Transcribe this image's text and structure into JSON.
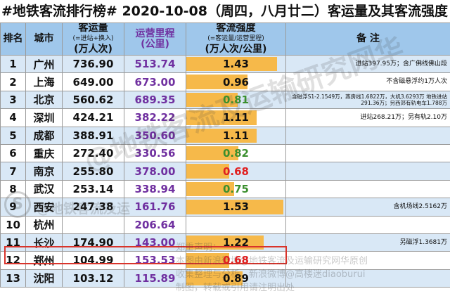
{
  "title": "#地铁客流排行榜# 2020-10-08（周四，八月廿二）客运量及其客流强度",
  "headers": {
    "rank": "排名",
    "city": "城市",
    "volume": "客运量",
    "volume_sub": "(=进站+换入)",
    "volume_unit": "(万人次)",
    "length": "运营里程",
    "length_unit": "(公里)",
    "intensity": "客流强度",
    "intensity_sub": "(=客运量/运营里程)",
    "intensity_unit": "(万人次/公里)",
    "notes": "备   注"
  },
  "rows": [
    {
      "rank": "1",
      "city": "广州",
      "volume": "736.90",
      "length": "513.74",
      "intensity": "1.43",
      "note": "进站397.95万；含广佛线佛山段"
    },
    {
      "rank": "2",
      "city": "上海",
      "volume": "649.00",
      "length": "673.00",
      "intensity": "0.96",
      "note": "不含磁悬浮约1万人次"
    },
    {
      "rank": "3",
      "city": "北京",
      "volume": "560.62",
      "length": "689.35",
      "intensity": "0.81",
      "note": "含磁浮S1-2.1549万，燕房线1.6822万，大机3.6293万 地铁进站291.36万；另西郊有轨电车1.788万"
    },
    {
      "rank": "4",
      "city": "深圳",
      "volume": "424.21",
      "length": "382.22",
      "intensity": "1.11",
      "note": "进站268.21万；另有轨2.10万"
    },
    {
      "rank": "5",
      "city": "成都",
      "volume": "388.91",
      "length": "350.60",
      "intensity": "1.11",
      "note": ""
    },
    {
      "rank": "6",
      "city": "重庆",
      "volume": "272.40",
      "length": "330.56",
      "intensity": "0.82",
      "note": ""
    },
    {
      "rank": "7",
      "city": "南京",
      "volume": "255.80",
      "length": "378.00",
      "intensity": "0.68",
      "note": ""
    },
    {
      "rank": "8",
      "city": "武汉",
      "volume": "253.14",
      "length": "338.94",
      "intensity": "0.75",
      "note": ""
    },
    {
      "rank": "9",
      "city": "西安",
      "volume": "247.38",
      "length": "161.76",
      "intensity": "1.53",
      "note": "含机场线2.5162万"
    },
    {
      "rank": "10",
      "city": "杭州",
      "volume": "",
      "length": "206.64",
      "intensity": "",
      "note": ""
    },
    {
      "rank": "11",
      "city": "长沙",
      "volume": "174.90",
      "length": "143.00",
      "intensity": "1.22",
      "note": "另磁浮1.3681万"
    },
    {
      "rank": "12",
      "city": "郑州",
      "volume": "104.99",
      "length": "153.53",
      "intensity": "0.68",
      "note": ""
    },
    {
      "rank": "13",
      "city": "沈阳",
      "volume": "103.12",
      "length": "115.89",
      "intensity": "0.89",
      "note": ""
    }
  ],
  "intensity_max": 1.56,
  "colors": {
    "header_bg": "#9fc7eb",
    "row_alt": "#d9e8f6",
    "bar": "#f6b94a",
    "length_text": "#7030a0",
    "low_value": "#e02020",
    "mid_value": "#3b8f2e",
    "highlight": "#d9342b"
  },
  "watermark": {
    "main": "@地铁客流及运输研究网华",
    "handle": "@地铁客流及运",
    "icon_glyph": "S",
    "disclaimer_lines": [
      "郑重声明：",
      "本图由新浪微博@地铁客流及运输研究网华原创",
      "收集整理与分析，新浪微博@高楼迷diaoburui",
      "制图，转载或引用请注明出处"
    ]
  }
}
